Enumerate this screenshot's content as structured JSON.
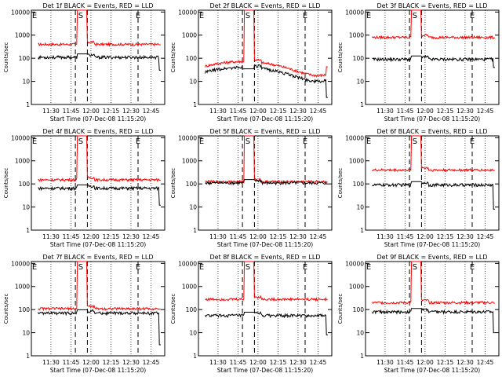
{
  "chart_data": {
    "type": "line",
    "yscale": "log",
    "ylim": [
      1,
      12000
    ],
    "xlabel": "Start Time (07-Dec-08 11:15:20)",
    "ylabel": "Counts/sec",
    "xticks": [
      "11:30",
      "11:45",
      "12:00",
      "12:15",
      "12:30",
      "12:45"
    ],
    "yticks": [
      "1",
      "10",
      "100",
      "1000",
      "10000"
    ],
    "markers": [
      "E",
      "S",
      "E"
    ],
    "colors": {
      "events": "#000000",
      "lld": "#ff0000"
    },
    "panels": [
      {
        "title": "Det 1f BLACK = Events, RED = LLD",
        "events_level": 110,
        "lld_level": 400,
        "lld_bump": 0,
        "events_bump": 0,
        "events_end": 30
      },
      {
        "title": "Det 2f BLACK = Events, RED = LLD",
        "events_level": 25,
        "lld_level": 45,
        "lld_bump": 0.6,
        "events_bump": 0.6,
        "events_end": 2
      },
      {
        "title": "Det 3f BLACK = Events, RED = LLD",
        "events_level": 90,
        "lld_level": 800,
        "lld_bump": 0,
        "events_bump": 0,
        "events_end": 40
      },
      {
        "title": "Det 4f BLACK = Events, RED = LLD",
        "events_level": 65,
        "lld_level": 150,
        "lld_bump": 0,
        "events_bump": 0,
        "events_end": 12
      },
      {
        "title": "Det 5f BLACK = Events, RED = LLD",
        "events_level": 110,
        "lld_level": 125,
        "lld_bump": 0,
        "events_bump": 0,
        "events_end": 100
      },
      {
        "title": "Det 6f BLACK = Events, RED = LLD",
        "events_level": 90,
        "lld_level": 400,
        "lld_bump": 0,
        "events_bump": 0,
        "events_end": 8
      },
      {
        "title": "Det 7f BLACK = Events, RED = LLD",
        "events_level": 70,
        "lld_level": 110,
        "lld_bump": 0,
        "events_bump": 0,
        "events_end": 3
      },
      {
        "title": "Det 8f BLACK = Events, RED = LLD",
        "events_level": 55,
        "lld_level": 280,
        "lld_bump": 0,
        "events_bump": 0,
        "events_end": 8
      },
      {
        "title": "Det 9f BLACK = Events, RED = LLD",
        "events_level": 80,
        "lld_level": 200,
        "lld_bump": 0,
        "events_bump": 0,
        "events_end": 10
      }
    ]
  }
}
